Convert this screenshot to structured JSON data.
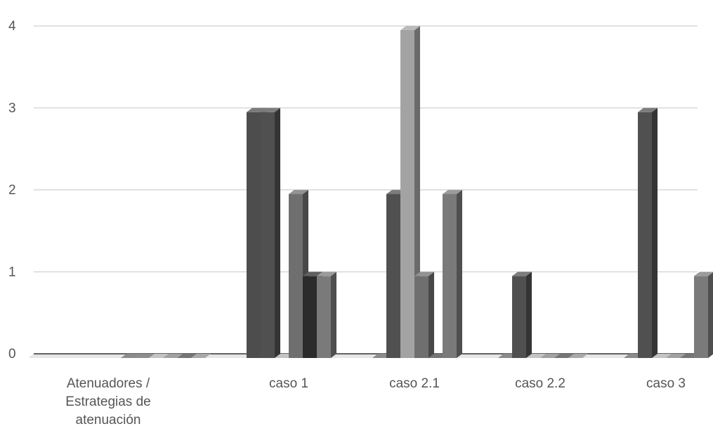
{
  "chart_data": {
    "type": "bar",
    "title": "",
    "xlabel": "",
    "ylabel": "",
    "ylim": [
      0,
      4
    ],
    "yticks": [
      0,
      1,
      2,
      3,
      4
    ],
    "grid": true,
    "legend": "none",
    "style": "3d-column",
    "categories": [
      [
        "Atenuadores /",
        "Estrategias de",
        "atenuación"
      ],
      [
        "caso 1"
      ],
      [
        "caso 2.1"
      ],
      [
        "caso 2.2"
      ],
      [
        "caso 3"
      ]
    ],
    "series": [
      {
        "color": "#4d4d4d",
        "values": [
          0,
          3,
          0,
          0,
          0
        ]
      },
      {
        "color": "#505050",
        "values": [
          0,
          3,
          2,
          1,
          3
        ]
      },
      {
        "color": "#a3a3a3",
        "values": [
          0,
          0,
          4,
          0,
          0
        ]
      },
      {
        "color": "#6f6f6f",
        "values": [
          0,
          2,
          1,
          0,
          0
        ]
      },
      {
        "color": "#2b2b2b",
        "values": [
          0,
          1,
          0,
          0,
          0
        ]
      },
      {
        "color": "#7a7a7a",
        "values": [
          0,
          1,
          2,
          0,
          1
        ]
      }
    ]
  }
}
